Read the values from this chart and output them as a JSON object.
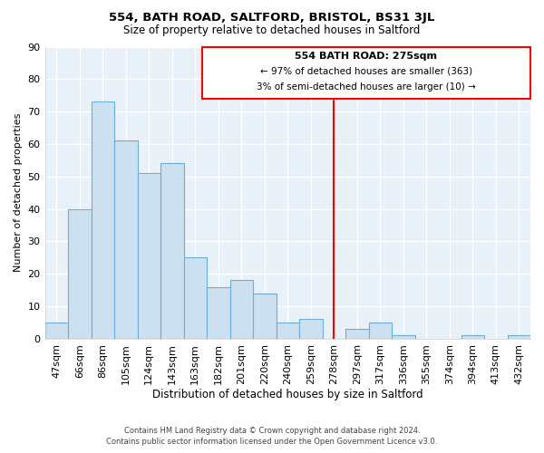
{
  "title": "554, BATH ROAD, SALTFORD, BRISTOL, BS31 3JL",
  "subtitle": "Size of property relative to detached houses in Saltford",
  "xlabel": "Distribution of detached houses by size in Saltford",
  "ylabel": "Number of detached properties",
  "bar_labels": [
    "47sqm",
    "66sqm",
    "86sqm",
    "105sqm",
    "124sqm",
    "143sqm",
    "163sqm",
    "182sqm",
    "201sqm",
    "220sqm",
    "240sqm",
    "259sqm",
    "278sqm",
    "297sqm",
    "317sqm",
    "336sqm",
    "355sqm",
    "374sqm",
    "394sqm",
    "413sqm",
    "432sqm"
  ],
  "bar_values": [
    5,
    40,
    73,
    61,
    51,
    54,
    25,
    16,
    18,
    14,
    5,
    6,
    0,
    3,
    5,
    1,
    0,
    0,
    1,
    0,
    1
  ],
  "bar_color": "#cce0f0",
  "bar_edge_color": "#6baed6",
  "vline_x": 12,
  "vline_color": "red",
  "ylim": [
    0,
    90
  ],
  "yticks": [
    0,
    10,
    20,
    30,
    40,
    50,
    60,
    70,
    80,
    90
  ],
  "annotation_title": "554 BATH ROAD: 275sqm",
  "annotation_line1": "← 97% of detached houses are smaller (363)",
  "annotation_line2": "3% of semi-detached houses are larger (10) →",
  "footer1": "Contains HM Land Registry data © Crown copyright and database right 2024.",
  "footer2": "Contains public sector information licensed under the Open Government Licence v3.0.",
  "bg_color": "#ffffff",
  "plot_bg_color": "#e8f0f8"
}
